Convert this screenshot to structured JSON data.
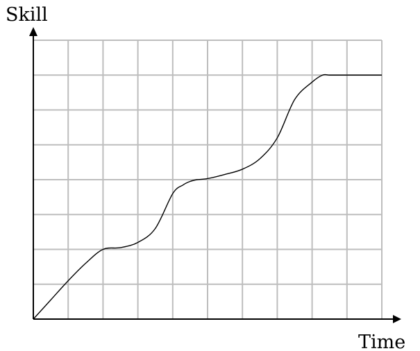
{
  "chart_data": {
    "type": "line",
    "title": "",
    "xlabel": "Time",
    "ylabel": "Skill",
    "xlim": [
      0,
      10
    ],
    "ylim": [
      0,
      8
    ],
    "grid": true,
    "tick_labels": false,
    "series": [
      {
        "x": [
          0,
          0.5,
          1,
          1.5,
          2,
          2.5,
          3,
          3.5,
          4,
          4.3,
          4.5,
          4.7,
          5,
          5.5,
          6,
          6.5,
          7,
          7.5,
          8,
          8.3,
          8.5,
          8.7,
          9,
          9.5,
          10
        ],
        "y": [
          0,
          0.55,
          1.1,
          1.6,
          2.0,
          2.05,
          2.2,
          2.6,
          3.6,
          3.85,
          3.95,
          4.0,
          4.03,
          4.15,
          4.3,
          4.6,
          5.2,
          6.3,
          6.8,
          7.0,
          7.0,
          7.0,
          7.0,
          7.0,
          7.0
        ]
      }
    ],
    "colors": {
      "line": "#000000",
      "grid": "#bdbdbd",
      "axis": "#000000"
    }
  }
}
